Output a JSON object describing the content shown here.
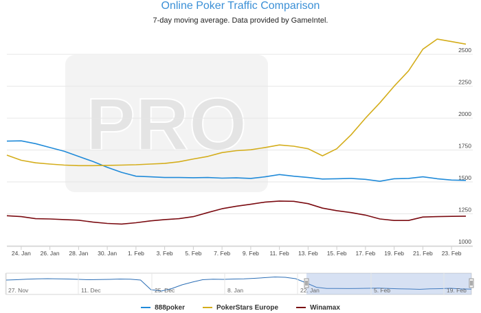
{
  "title": "Online Poker Traffic Comparison",
  "subtitle": "7-day moving average. Data provided by GameIntel.",
  "watermark": "PRO",
  "colors": {
    "888poker": "#1f8ad9",
    "PokerStars Europe": "#d4ad1a",
    "Winamax": "#7a0a10",
    "accent": "#3a8fd6"
  },
  "chart_data": {
    "type": "line",
    "title": "Online Poker Traffic Comparison",
    "subtitle": "7-day moving average. Data provided by GameIntel.",
    "xlabel": "",
    "ylabel": "",
    "ylim": [
      1000,
      2700
    ],
    "yticks": [
      1000,
      1250,
      1500,
      1750,
      2000,
      2250,
      2500
    ],
    "xticks": [
      "24. Jan",
      "26. Jan",
      "28. Jan",
      "30. Jan",
      "1. Feb",
      "3. Feb",
      "5. Feb",
      "7. Feb",
      "9. Feb",
      "11. Feb",
      "13. Feb",
      "15. Feb",
      "17. Feb",
      "19. Feb",
      "21. Feb",
      "23. Feb"
    ],
    "x": [
      "23. Jan",
      "24. Jan",
      "25. Jan",
      "26. Jan",
      "27. Jan",
      "28. Jan",
      "29. Jan",
      "30. Jan",
      "31. Jan",
      "1. Feb",
      "2. Feb",
      "3. Feb",
      "4. Feb",
      "5. Feb",
      "6. Feb",
      "7. Feb",
      "8. Feb",
      "9. Feb",
      "10. Feb",
      "11. Feb",
      "12. Feb",
      "13. Feb",
      "14. Feb",
      "15. Feb",
      "16. Feb",
      "17. Feb",
      "18. Feb",
      "19. Feb",
      "20. Feb",
      "21. Feb",
      "22. Feb",
      "23. Feb",
      "24. Feb"
    ],
    "series": [
      {
        "name": "888poker",
        "values": [
          1820,
          1822,
          1800,
          1770,
          1740,
          1700,
          1660,
          1615,
          1575,
          1545,
          1540,
          1535,
          1535,
          1533,
          1535,
          1530,
          1532,
          1528,
          1540,
          1558,
          1545,
          1535,
          1523,
          1525,
          1528,
          1520,
          1505,
          1525,
          1528,
          1540,
          1525,
          1515,
          1512
        ]
      },
      {
        "name": "PokerStars Europe",
        "values": [
          1710,
          1670,
          1650,
          1640,
          1632,
          1628,
          1628,
          1630,
          1632,
          1635,
          1640,
          1645,
          1658,
          1680,
          1700,
          1730,
          1745,
          1752,
          1770,
          1790,
          1780,
          1760,
          1705,
          1760,
          1870,
          2000,
          2120,
          2250,
          2370,
          2540,
          2620,
          2600,
          2580
        ]
      },
      {
        "name": "Winamax",
        "values": [
          1235,
          1228,
          1212,
          1210,
          1205,
          1200,
          1185,
          1175,
          1170,
          1180,
          1195,
          1205,
          1212,
          1228,
          1260,
          1290,
          1310,
          1325,
          1342,
          1350,
          1348,
          1330,
          1295,
          1275,
          1260,
          1240,
          1210,
          1198,
          1198,
          1225,
          1228,
          1230,
          1232
        ]
      }
    ],
    "navigator": {
      "labels": [
        "27. Nov",
        "11. Dec",
        "25. Dec",
        "8. Jan",
        "22. Jan",
        "5. Feb",
        "19. Feb"
      ],
      "series_name": "888poker",
      "values": [
        1780,
        1790,
        1805,
        1815,
        1820,
        1815,
        1810,
        1800,
        1790,
        1795,
        1800,
        1810,
        1805,
        1780,
        1500,
        1460,
        1530,
        1640,
        1720,
        1790,
        1805,
        1800,
        1810,
        1815,
        1830,
        1850,
        1870,
        1860,
        1820,
        1700,
        1570,
        1535,
        1535,
        1532,
        1535,
        1540,
        1545,
        1535,
        1525,
        1520,
        1510,
        1525,
        1530,
        1540,
        1522,
        1515
      ],
      "selected_from": "23. Jan",
      "selected_to": "24. Feb"
    }
  },
  "legend": [
    {
      "label": "888poker"
    },
    {
      "label": "PokerStars Europe"
    },
    {
      "label": "Winamax"
    }
  ]
}
